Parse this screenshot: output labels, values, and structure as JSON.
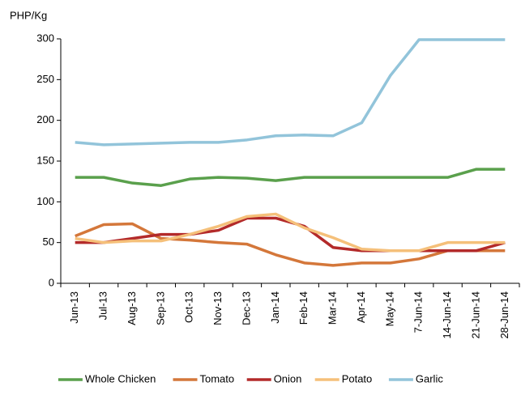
{
  "chart_data": {
    "type": "line",
    "y_label": "PHP/Kg",
    "categories": [
      "Jun-13",
      "Jul-13",
      "Aug-13",
      "Sep-13",
      "Oct-13",
      "Nov-13",
      "Dec-13",
      "Jan-14",
      "Feb-14",
      "Mar-14",
      "Apr-14",
      "May-14",
      "7-Jun-14",
      "14-Jun-14",
      "21-Jun-14",
      "28-Jun-14"
    ],
    "series": [
      {
        "name": "Whole Chicken",
        "color": "#5aa04c",
        "values": [
          130,
          130,
          123,
          120,
          128,
          130,
          129,
          126,
          130,
          130,
          130,
          130,
          130,
          130,
          140,
          140
        ]
      },
      {
        "name": "Tomato",
        "color": "#d4773a",
        "values": [
          58,
          72,
          73,
          55,
          53,
          50,
          48,
          35,
          25,
          22,
          25,
          25,
          30,
          40,
          40,
          40
        ]
      },
      {
        "name": "Onion",
        "color": "#b32a2a",
        "values": [
          50,
          50,
          55,
          60,
          60,
          65,
          80,
          80,
          70,
          44,
          40,
          40,
          40,
          40,
          40,
          50
        ]
      },
      {
        "name": "Potato",
        "color": "#f5c07a",
        "values": [
          55,
          50,
          52,
          52,
          60,
          70,
          82,
          85,
          68,
          56,
          42,
          40,
          40,
          50,
          50,
          50
        ]
      },
      {
        "name": "Garlic",
        "color": "#92c4da",
        "values": [
          173,
          170,
          171,
          172,
          173,
          173,
          176,
          181,
          182,
          181,
          197,
          255,
          299,
          299,
          299,
          299
        ]
      }
    ],
    "ylim": [
      0,
      300
    ],
    "yticks": [
      0,
      50,
      100,
      150,
      200,
      250,
      300
    ],
    "grid": false,
    "legend": "bottom"
  }
}
